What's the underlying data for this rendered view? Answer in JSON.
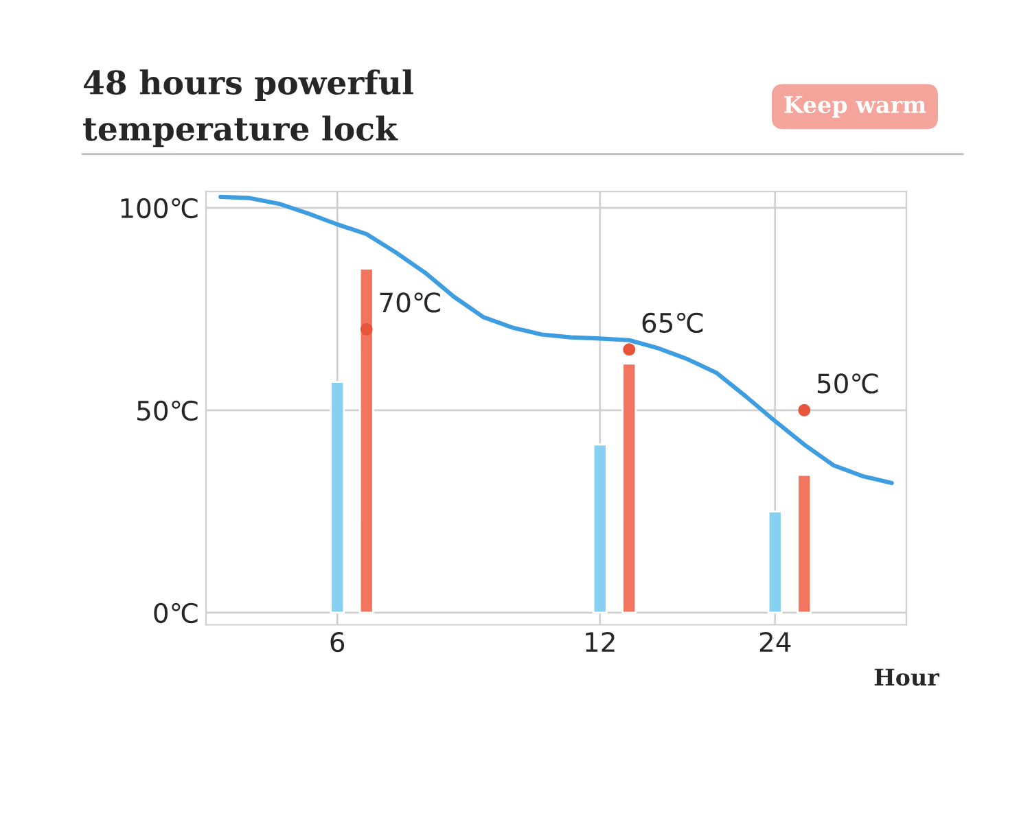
{
  "chart_data": {
    "type": "bar",
    "title": "48 hours powerful\ntemperature lock",
    "xlabel": "Hour",
    "categories": [
      null,
      null,
      null,
      null,
      "6",
      null,
      null,
      null,
      null,
      null,
      null,
      null,
      null,
      "12",
      null,
      null,
      null,
      null,
      null,
      "24",
      null,
      null,
      null,
      null
    ],
    "series": [
      {
        "color": "#86d0f2",
        "values": [
          null,
          null,
          null,
          null,
          57,
          null,
          null,
          null,
          null,
          null,
          null,
          null,
          null,
          41.5,
          null,
          null,
          null,
          null,
          null,
          25,
          null,
          null,
          null,
          null
        ]
      },
      {
        "color": "#f2765f",
        "values": [
          null,
          null,
          null,
          null,
          null,
          85,
          null,
          null,
          null,
          null,
          null,
          null,
          null,
          null,
          61.5,
          null,
          null,
          null,
          null,
          null,
          34,
          null,
          null,
          null
        ]
      },
      {
        "type": "line",
        "color": "#3d9de0",
        "values": [
          102.7,
          102.4,
          101,
          98.6,
          95.9,
          93.5,
          89,
          84,
          78,
          73,
          70.4,
          68.7,
          68,
          67.7,
          67.3,
          65.3,
          62.6,
          59.2,
          53.4,
          47.3,
          41.5,
          36.4,
          33.7,
          32
        ]
      },
      {
        "type": "scatter",
        "color": "#e8553a",
        "values": [
          null,
          null,
          null,
          null,
          null,
          70,
          null,
          null,
          null,
          null,
          null,
          null,
          null,
          null,
          65,
          null,
          null,
          null,
          null,
          null,
          50,
          null,
          null,
          null
        ],
        "value_labels": [
          null,
          null,
          null,
          null,
          null,
          "70℃",
          null,
          null,
          null,
          null,
          null,
          null,
          null,
          null,
          "65℃",
          null,
          null,
          null,
          null,
          null,
          "50℃",
          null,
          null,
          null
        ]
      }
    ],
    "annotations": [
      "Keep warm"
    ],
    "ylim": [
      -3,
      104
    ],
    "yticks": [
      {
        "value": 0,
        "label": "0℃"
      },
      {
        "value": 50,
        "label": "50℃"
      },
      {
        "value": 100,
        "label": "100℃"
      }
    ],
    "grid": true
  }
}
